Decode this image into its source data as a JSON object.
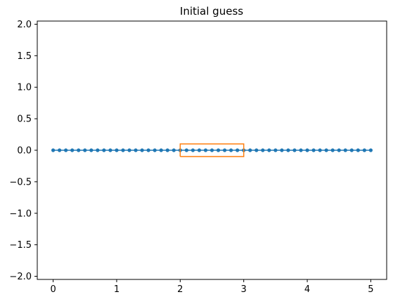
{
  "chart_data": {
    "type": "line",
    "title": "Initial guess",
    "xlabel": "",
    "ylabel": "",
    "xlim": [
      -0.25,
      5.25
    ],
    "ylim": [
      -2.05,
      2.05
    ],
    "grid": false,
    "xticks": [
      0,
      1,
      2,
      3,
      4,
      5
    ],
    "xtick_labels": [
      "0",
      "1",
      "2",
      "3",
      "4",
      "5"
    ],
    "yticks": [
      2.0,
      1.5,
      1.0,
      0.5,
      0.0,
      -0.5,
      -1.0,
      -1.5,
      -2.0
    ],
    "ytick_labels": [
      "2.0",
      "1.5",
      "1.0",
      "0.5",
      "0.0",
      "−0.5",
      "−1.0",
      "−1.5",
      "−2.0"
    ],
    "series": [
      {
        "kind": "line-markers",
        "color": "#1f77b4",
        "x": [
          0.0,
          0.1,
          0.2,
          0.3,
          0.4,
          0.5,
          0.6,
          0.7,
          0.8,
          0.9,
          1.0,
          1.1,
          1.2,
          1.3,
          1.4,
          1.5,
          1.6,
          1.7,
          1.8,
          1.9,
          2.0,
          2.1,
          2.2,
          2.3,
          2.4,
          2.5,
          2.6,
          2.7,
          2.8,
          2.9,
          3.0,
          3.1,
          3.2,
          3.3,
          3.4,
          3.5,
          3.6,
          3.7,
          3.8,
          3.9,
          4.0,
          4.1,
          4.2,
          4.3,
          4.4,
          4.5,
          4.6,
          4.7,
          4.8,
          4.9,
          5.0
        ],
        "y": [
          0,
          0,
          0,
          0,
          0,
          0,
          0,
          0,
          0,
          0,
          0,
          0,
          0,
          0,
          0,
          0,
          0,
          0,
          0,
          0,
          0,
          0,
          0,
          0,
          0,
          0,
          0,
          0,
          0,
          0,
          0,
          0,
          0,
          0,
          0,
          0,
          0,
          0,
          0,
          0,
          0,
          0,
          0,
          0,
          0,
          0,
          0,
          0,
          0,
          0,
          0
        ]
      },
      {
        "kind": "rectangle-outline",
        "color": "#ff7f0e",
        "x": [
          2,
          3,
          3,
          2,
          2
        ],
        "y": [
          -0.1,
          -0.1,
          0.1,
          0.1,
          -0.1
        ]
      }
    ]
  }
}
